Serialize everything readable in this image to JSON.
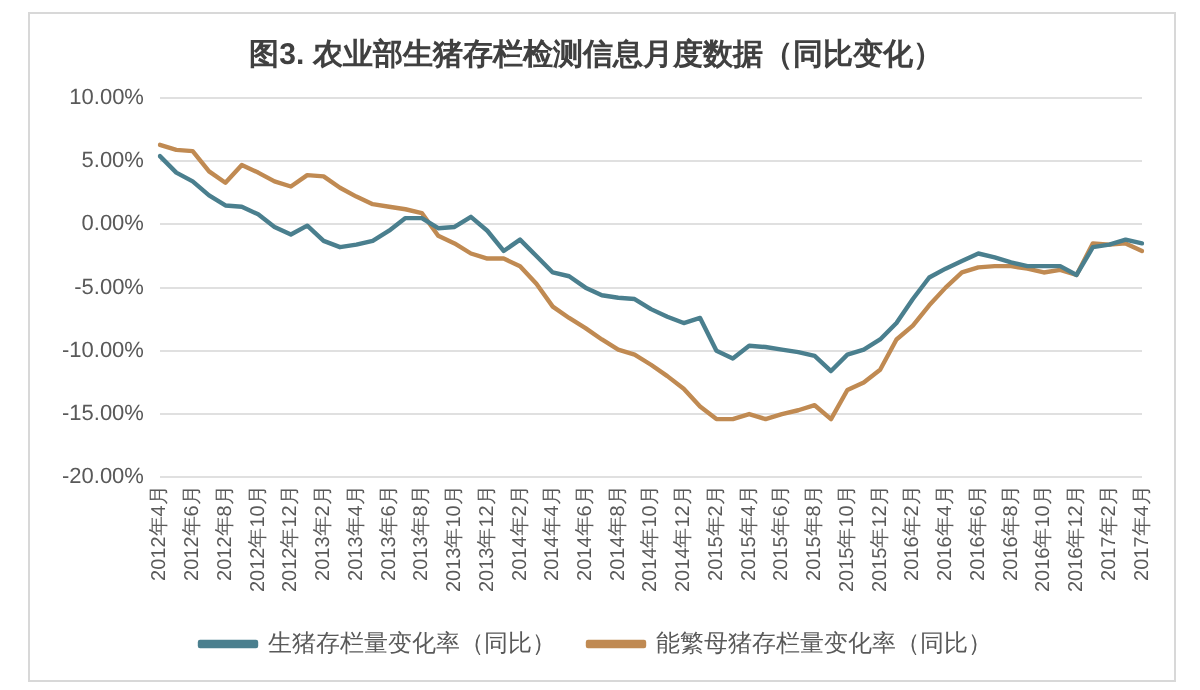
{
  "chart_data": {
    "type": "line",
    "title": "图3. 农业部生猪存栏检测信息月度数据（同比变化）",
    "categories": [
      "2012年4月",
      null,
      "2012年6月",
      null,
      "2012年8月",
      null,
      "2012年10月",
      null,
      "2012年12月",
      null,
      "2013年2月",
      null,
      "2013年4月",
      null,
      "2013年6月",
      null,
      "2013年8月",
      null,
      "2013年10月",
      null,
      "2013年12月",
      null,
      "2014年2月",
      null,
      "2014年4月",
      null,
      "2014年6月",
      null,
      "2014年8月",
      null,
      "2014年10月",
      null,
      "2014年12月",
      null,
      "2015年2月",
      null,
      "2015年4月",
      null,
      "2015年6月",
      null,
      "2015年8月",
      null,
      "2015年10月",
      null,
      "2015年12月",
      null,
      "2016年2月",
      null,
      "2016年4月",
      null,
      "2016年6月",
      null,
      "2016年8月",
      null,
      "2016年10月",
      null,
      "2016年12月",
      null,
      "2017年2月",
      null,
      "2017年4月"
    ],
    "series": [
      {
        "name": "生猪存栏量变化率（同比）",
        "color": "#4a7f8e",
        "values": [
          5.4,
          4.1,
          3.4,
          2.3,
          1.5,
          1.4,
          0.8,
          -0.2,
          -0.8,
          -0.1,
          -1.3,
          -1.8,
          -1.6,
          -1.3,
          -0.5,
          0.5,
          0.5,
          -0.3,
          -0.2,
          0.6,
          -0.5,
          -2.1,
          -1.2,
          -2.5,
          -3.8,
          -4.1,
          -5.0,
          -5.6,
          -5.8,
          -5.9,
          -6.7,
          -7.3,
          -7.8,
          -7.4,
          -10.0,
          -10.6,
          -9.6,
          -9.7,
          -9.9,
          -10.1,
          -10.4,
          -11.6,
          -10.3,
          -9.9,
          -9.1,
          -7.8,
          -5.9,
          -4.2,
          -3.5,
          -2.9,
          -2.3,
          -2.6,
          -3.0,
          -3.3,
          -3.3,
          -3.3,
          -4.0,
          -1.8,
          -1.6,
          -1.2,
          -1.5
        ]
      },
      {
        "name": "能繁母猪存栏量变化率（同比）",
        "color": "#c08a52",
        "values": [
          6.3,
          5.9,
          5.8,
          4.2,
          3.3,
          4.7,
          4.1,
          3.4,
          3.0,
          3.9,
          3.8,
          2.9,
          2.2,
          1.6,
          1.4,
          1.2,
          0.9,
          -0.9,
          -1.5,
          -2.3,
          -2.7,
          -2.7,
          -3.3,
          -4.7,
          -6.5,
          -7.4,
          -8.2,
          -9.1,
          -9.9,
          -10.3,
          -11.1,
          -12.0,
          -13.0,
          -14.4,
          -15.4,
          -15.4,
          -15.0,
          -15.4,
          -15.0,
          -14.7,
          -14.3,
          -15.4,
          -13.1,
          -12.5,
          -11.5,
          -9.1,
          -8.0,
          -6.4,
          -5.0,
          -3.8,
          -3.4,
          -3.3,
          -3.3,
          -3.5,
          -3.8,
          -3.6,
          -4.0,
          -1.5,
          -1.6,
          -1.5,
          -2.1
        ]
      }
    ],
    "ylim": [
      -20,
      10
    ],
    "yticks": [
      {
        "value": -20,
        "label": "-20.00%"
      },
      {
        "value": -15,
        "label": "-15.00%"
      },
      {
        "value": -10,
        "label": "-10.00%"
      },
      {
        "value": -5,
        "label": "-5.00%"
      },
      {
        "value": 0,
        "label": "0.00%"
      },
      {
        "value": 5,
        "label": "5.00%"
      },
      {
        "value": 10,
        "label": "10.00%"
      }
    ],
    "grid": "y",
    "legend": "bottom",
    "marker": "none",
    "line_style": "solid"
  }
}
